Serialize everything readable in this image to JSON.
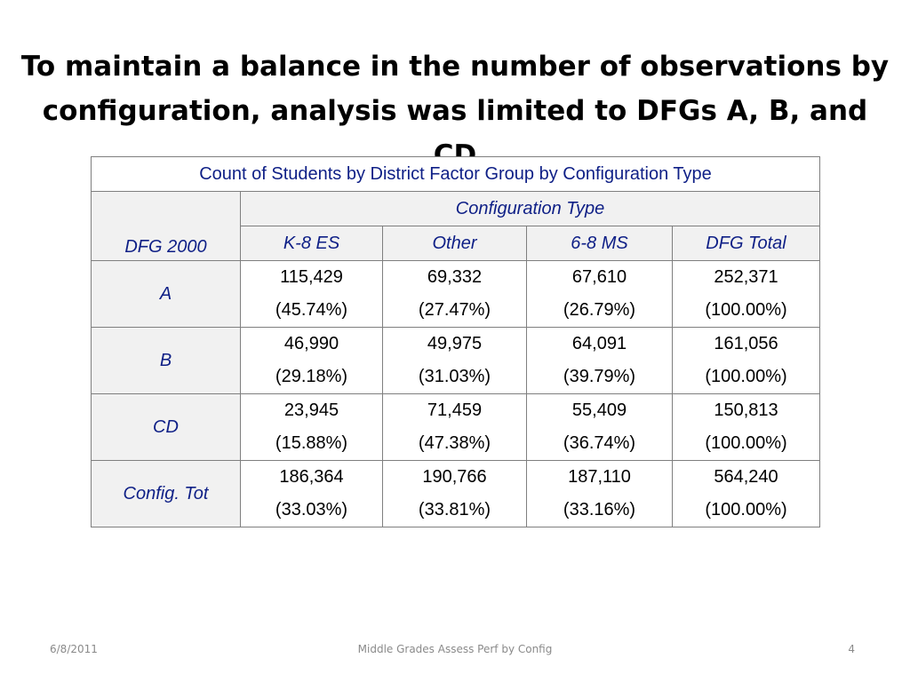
{
  "slide": {
    "title_line1": "To maintain a balance in the number of observations by",
    "title_line2": "configuration, analysis was limited to DFGs A, B, and CD"
  },
  "table": {
    "caption": "Count of Students by District Factor Group by Configuration Type",
    "row_header_label": "DFG 2000",
    "group_header": "Configuration Type",
    "columns": [
      "K-8 ES",
      "Other",
      "6-8 MS",
      "DFG Total"
    ],
    "rows": [
      {
        "label": "A",
        "cells": [
          {
            "count": "115,429",
            "pct": "(45.74%)"
          },
          {
            "count": "69,332",
            "pct": "(27.47%)"
          },
          {
            "count": "67,610",
            "pct": "(26.79%)"
          },
          {
            "count": "252,371",
            "pct": "(100.00%)"
          }
        ]
      },
      {
        "label": "B",
        "cells": [
          {
            "count": "46,990",
            "pct": "(29.18%)"
          },
          {
            "count": "49,975",
            "pct": "(31.03%)"
          },
          {
            "count": "64,091",
            "pct": "(39.79%)"
          },
          {
            "count": "161,056",
            "pct": "(100.00%)"
          }
        ]
      },
      {
        "label": "CD",
        "cells": [
          {
            "count": "23,945",
            "pct": "(15.88%)"
          },
          {
            "count": "71,459",
            "pct": "(47.38%)"
          },
          {
            "count": "55,409",
            "pct": "(36.74%)"
          },
          {
            "count": "150,813",
            "pct": "(100.00%)"
          }
        ]
      },
      {
        "label": "Config. Tot",
        "cells": [
          {
            "count": "186,364",
            "pct": "(33.03%)"
          },
          {
            "count": "190,766",
            "pct": "(33.81%)"
          },
          {
            "count": "187,110",
            "pct": "(33.16%)"
          },
          {
            "count": "564,240",
            "pct": "(100.00%)"
          }
        ]
      }
    ]
  },
  "footer": {
    "date": "6/8/2011",
    "center_text": "Middle Grades Assess Perf by Config",
    "page_number": "4"
  }
}
